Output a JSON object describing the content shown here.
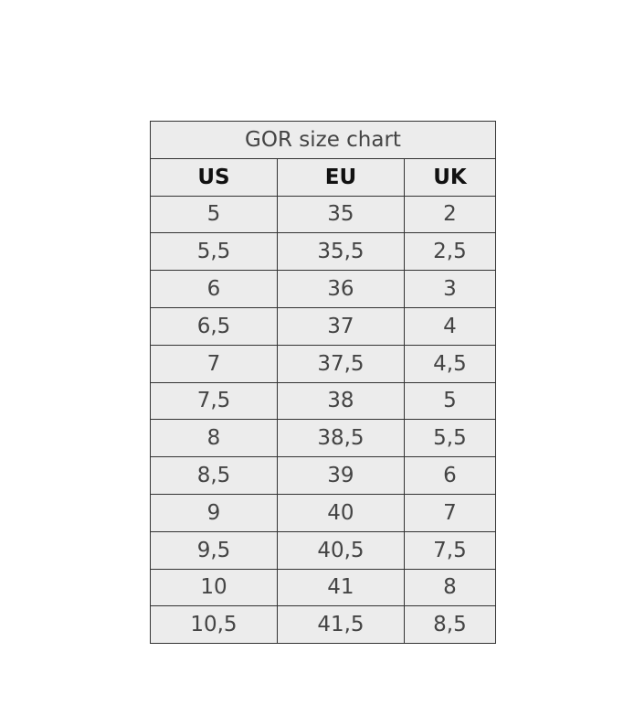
{
  "table": {
    "title": "GOR size chart",
    "headers": [
      "US",
      "EU",
      "UK"
    ],
    "rows": [
      [
        "5",
        "35",
        "2"
      ],
      [
        "5,5",
        "35,5",
        "2,5"
      ],
      [
        "6",
        "36",
        "3"
      ],
      [
        "6,5",
        "37",
        "4"
      ],
      [
        "7",
        "37,5",
        "4,5"
      ],
      [
        "7,5",
        "38",
        "5"
      ],
      [
        "8",
        "38,5",
        "5,5"
      ],
      [
        "8,5",
        "39",
        "6"
      ],
      [
        "9",
        "40",
        "7"
      ],
      [
        "9,5",
        "40,5",
        "7,5"
      ],
      [
        "10",
        "41",
        "8"
      ],
      [
        "10,5",
        "41,5",
        "8,5"
      ]
    ]
  }
}
